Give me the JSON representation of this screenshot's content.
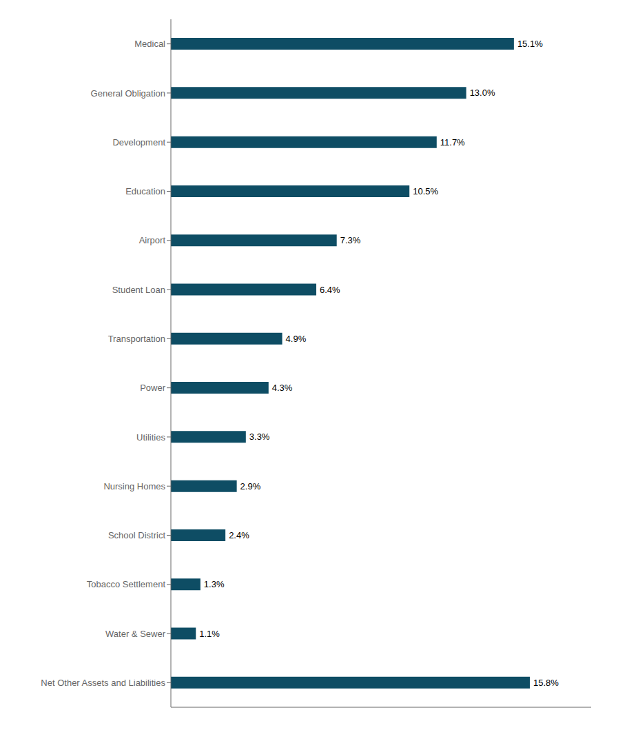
{
  "chart_data": {
    "type": "bar",
    "orientation": "horizontal",
    "categories": [
      "Medical",
      "General Obligation",
      "Development",
      "Education",
      "Airport",
      "Student Loan",
      "Transportation",
      "Power",
      "Utilities",
      "Nursing Homes",
      "School District",
      "Tobacco Settlement",
      "Water & Sewer",
      "Net Other Assets and Liabilities"
    ],
    "values": [
      15.1,
      13.0,
      11.7,
      10.5,
      7.3,
      6.4,
      4.9,
      4.3,
      3.3,
      2.9,
      2.4,
      1.3,
      1.1,
      15.8
    ],
    "value_labels": [
      "15.1%",
      "13.0%",
      "11.7%",
      "10.5%",
      "7.3%",
      "6.4%",
      "4.9%",
      "4.3%",
      "3.3%",
      "2.9%",
      "2.4%",
      "1.3%",
      "1.1%",
      "15.8%"
    ],
    "data_labels": true,
    "color": "#0e4d64",
    "xlim": [
      0,
      18.5
    ],
    "tick_labels": "y",
    "grid": false
  }
}
